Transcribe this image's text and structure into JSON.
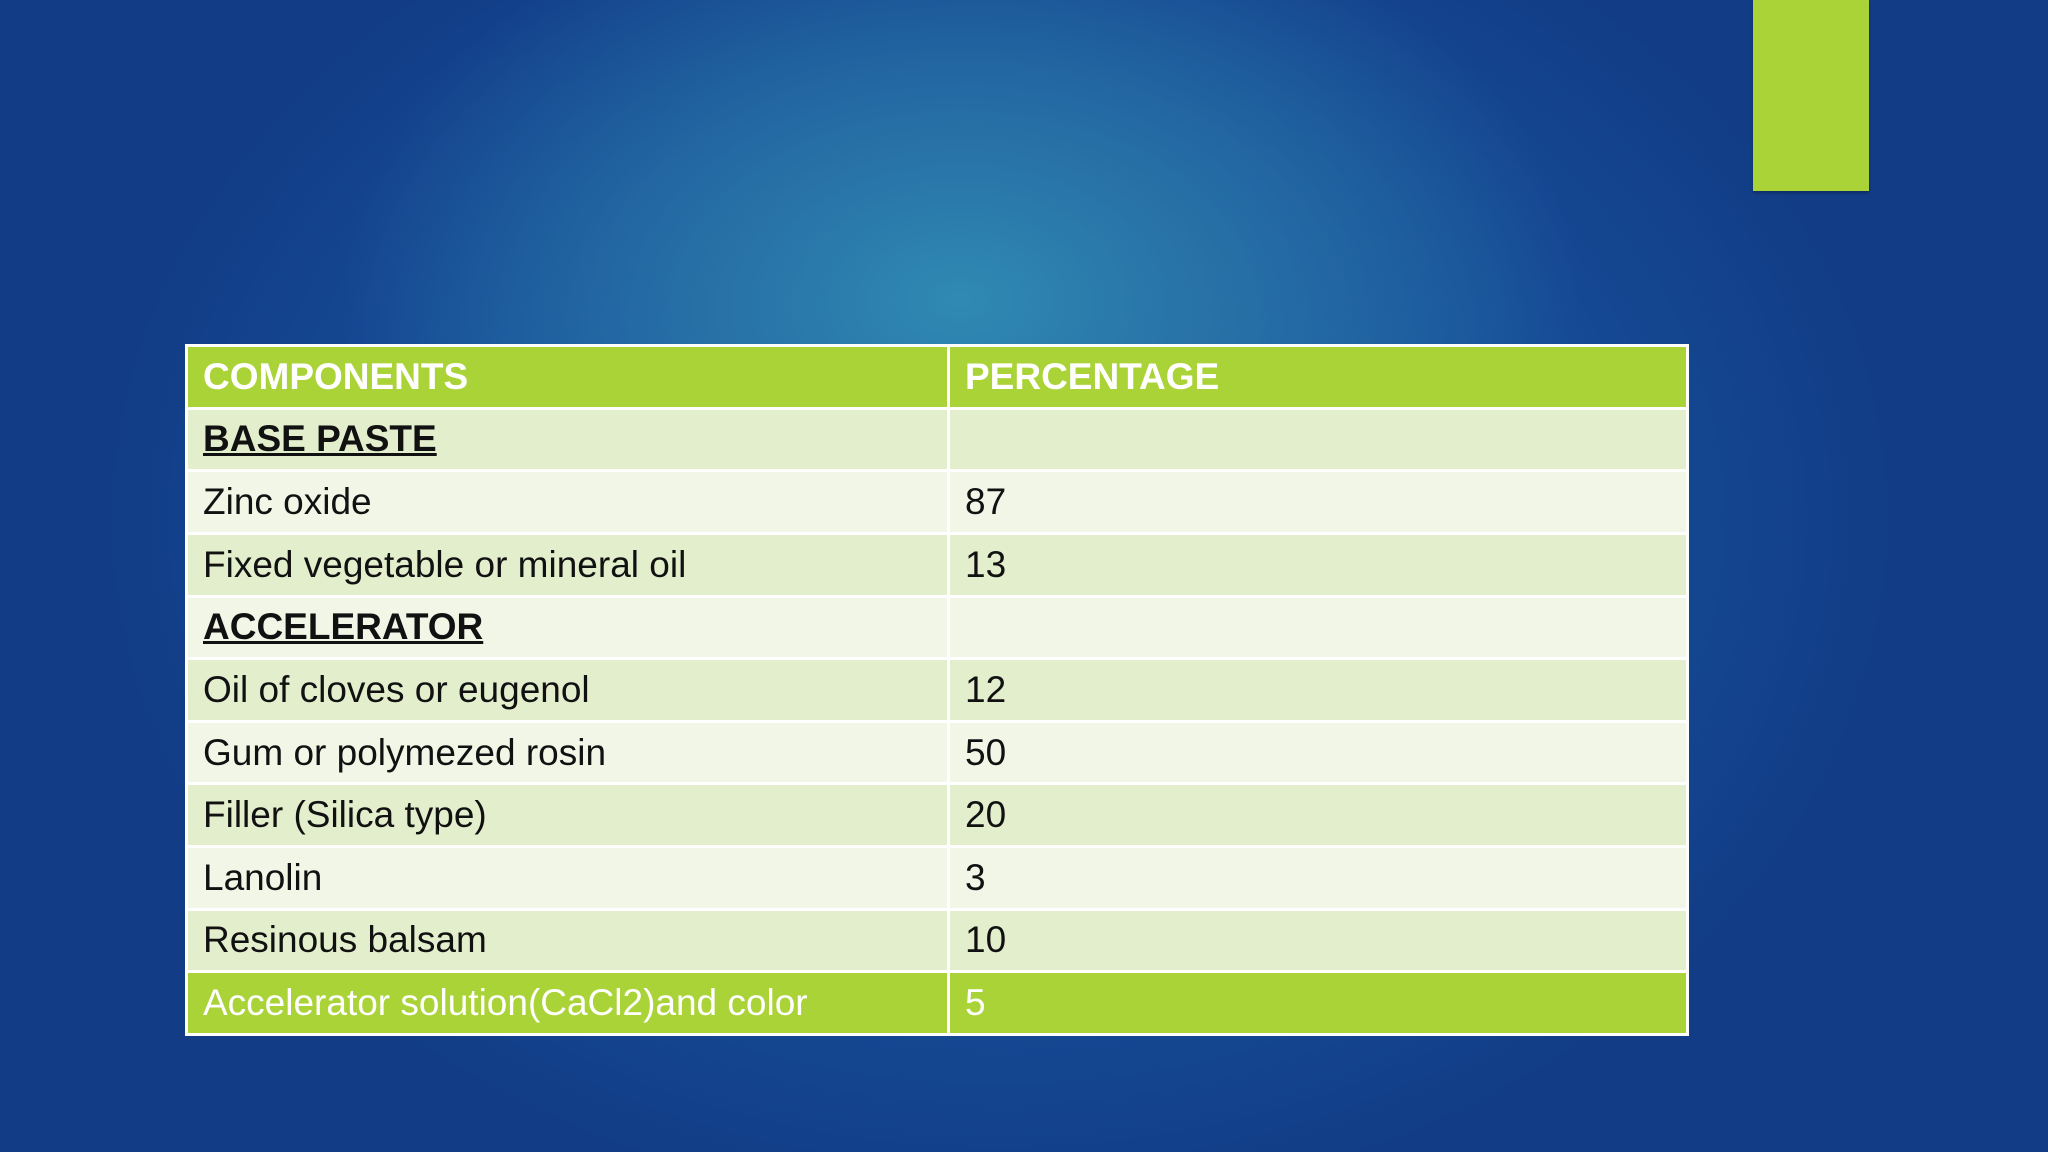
{
  "table": {
    "headers": [
      "COMPONENTS",
      "PERCENTAGE"
    ],
    "rows": [
      {
        "component": "BASE PASTE",
        "percentage": "",
        "section": true
      },
      {
        "component": "Zinc oxide",
        "percentage": "87"
      },
      {
        "component": "Fixed vegetable or mineral oil",
        "percentage": "13"
      },
      {
        "component": "ACCELERATOR",
        "percentage": "",
        "section": true
      },
      {
        "component": "Oil of cloves or eugenol",
        "percentage": "12"
      },
      {
        "component": "Gum or polymezed rosin",
        "percentage": "50"
      },
      {
        "component": "Filler (Silica type)",
        "percentage": "20"
      },
      {
        "component": "Lanolin",
        "percentage": "3"
      },
      {
        "component": "Resinous balsam",
        "percentage": "10"
      },
      {
        "component": "Accelerator solution(CaCl2)and color",
        "percentage": "5"
      }
    ]
  },
  "colors": {
    "accent_green": "#aad338",
    "row_dark": "#e3eecd",
    "row_light": "#f1f6e7",
    "background_blue": "#17509a"
  }
}
